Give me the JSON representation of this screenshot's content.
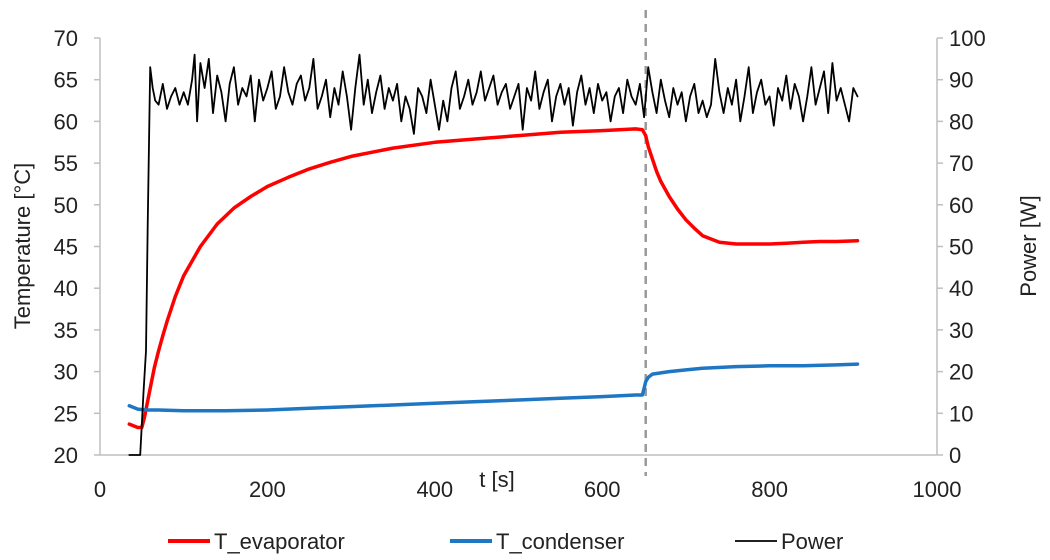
{
  "chart_data": {
    "type": "line",
    "xlabel": "t [s]",
    "ylabel_left": "Temperature [°C]",
    "ylabel_right": "Power [W]",
    "xlim": [
      0,
      1000
    ],
    "ylim_left": [
      20,
      70
    ],
    "ylim_right": [
      0,
      100
    ],
    "xticks": [
      "0",
      "200",
      "400",
      "600",
      "800",
      "1000"
    ],
    "yticks_left": [
      "20",
      "25",
      "30",
      "35",
      "40",
      "45",
      "50",
      "55",
      "60",
      "65",
      "70"
    ],
    "yticks_right": [
      "0",
      "10",
      "20",
      "30",
      "40",
      "50",
      "60",
      "70",
      "80",
      "90",
      "100"
    ],
    "grid": false,
    "legend_position": "bottom",
    "vline_x": 652,
    "vline_color": "#999999",
    "series": [
      {
        "name": "T_evaporator",
        "axis": "left",
        "color": "#ff0000",
        "x": [
          35,
          45,
          50,
          53,
          56,
          60,
          65,
          70,
          75,
          80,
          90,
          100,
          120,
          140,
          160,
          180,
          200,
          225,
          250,
          275,
          300,
          350,
          400,
          450,
          500,
          550,
          600,
          640,
          648,
          652,
          655,
          660,
          665,
          670,
          680,
          690,
          700,
          710,
          720,
          740,
          760,
          780,
          800,
          820,
          840,
          860,
          880,
          905
        ],
        "y": [
          23.7,
          23.3,
          23.3,
          24.5,
          26.0,
          28.0,
          30.5,
          32.5,
          34.3,
          36.0,
          39.0,
          41.5,
          45.0,
          47.7,
          49.6,
          51.0,
          52.2,
          53.3,
          54.3,
          55.1,
          55.8,
          56.8,
          57.5,
          57.9,
          58.3,
          58.7,
          58.9,
          59.1,
          59.0,
          58.3,
          57.0,
          55.5,
          54.0,
          52.8,
          51.0,
          49.5,
          48.2,
          47.2,
          46.3,
          45.5,
          45.3,
          45.3,
          45.3,
          45.4,
          45.5,
          45.6,
          45.6,
          45.7
        ]
      },
      {
        "name": "T_condenser",
        "axis": "left",
        "color": "#1f77c4",
        "x": [
          35,
          45,
          55,
          70,
          100,
          120,
          150,
          200,
          250,
          300,
          350,
          400,
          450,
          500,
          550,
          600,
          640,
          648,
          650,
          652,
          655,
          660,
          680,
          700,
          720,
          760,
          800,
          840,
          880,
          905
        ],
        "y": [
          25.9,
          25.5,
          25.4,
          25.4,
          25.3,
          25.3,
          25.3,
          25.4,
          25.6,
          25.8,
          26.0,
          26.2,
          26.4,
          26.6,
          26.8,
          27.0,
          27.2,
          27.2,
          28.0,
          28.8,
          29.3,
          29.7,
          30.0,
          30.2,
          30.4,
          30.6,
          30.7,
          30.7,
          30.8,
          30.9
        ]
      },
      {
        "name": "Power",
        "axis": "right",
        "color": "#000000",
        "x": [
          35,
          48,
          52,
          55,
          57,
          60,
          63,
          66,
          70,
          75,
          80,
          85,
          90,
          95,
          100,
          105,
          110,
          113,
          116,
          120,
          125,
          130,
          135,
          140,
          145,
          150,
          155,
          160,
          165,
          170,
          175,
          180,
          185,
          190,
          195,
          200,
          205,
          210,
          215,
          220,
          225,
          230,
          235,
          240,
          245,
          250,
          255,
          260,
          265,
          270,
          275,
          280,
          285,
          290,
          295,
          300,
          305,
          310,
          315,
          320,
          325,
          330,
          335,
          340,
          345,
          350,
          355,
          360,
          365,
          370,
          375,
          380,
          385,
          390,
          395,
          400,
          405,
          410,
          415,
          420,
          425,
          430,
          435,
          440,
          445,
          450,
          455,
          460,
          465,
          470,
          475,
          480,
          485,
          490,
          495,
          500,
          505,
          510,
          515,
          520,
          525,
          530,
          535,
          540,
          545,
          550,
          555,
          560,
          565,
          570,
          575,
          580,
          585,
          590,
          595,
          600,
          605,
          610,
          615,
          620,
          625,
          630,
          635,
          640,
          645,
          650,
          655,
          660,
          665,
          670,
          675,
          680,
          685,
          690,
          695,
          700,
          705,
          710,
          715,
          720,
          725,
          730,
          735,
          740,
          745,
          750,
          755,
          760,
          765,
          770,
          775,
          780,
          785,
          790,
          795,
          800,
          805,
          810,
          815,
          820,
          825,
          830,
          835,
          840,
          845,
          850,
          855,
          860,
          865,
          870,
          875,
          880,
          885,
          890,
          895,
          900,
          905
        ],
        "y": [
          0,
          0,
          15,
          25,
          55,
          93,
          88,
          85,
          84,
          89,
          83,
          86,
          88,
          84,
          87,
          84,
          90,
          96,
          80,
          94,
          88,
          95,
          82,
          91,
          87,
          80,
          89,
          93,
          84,
          88,
          86,
          91,
          80,
          90,
          85,
          88,
          92,
          83,
          86,
          93,
          87,
          84,
          89,
          91,
          85,
          88,
          95,
          83,
          86,
          90,
          81,
          88,
          84,
          92,
          86,
          78,
          88,
          96,
          84,
          90,
          82,
          87,
          91,
          83,
          88,
          85,
          89,
          80,
          86,
          83,
          77,
          88,
          86,
          82,
          90,
          84,
          78,
          85,
          80,
          88,
          92,
          83,
          86,
          90,
          84,
          87,
          92,
          85,
          88,
          91,
          84,
          87,
          89,
          83,
          86,
          89,
          78,
          88,
          85,
          92,
          83,
          87,
          90,
          80,
          86,
          89,
          84,
          88,
          79,
          87,
          91,
          84,
          88,
          82,
          89,
          85,
          87,
          80,
          86,
          88,
          82,
          90,
          86,
          84,
          89,
          81,
          93,
          87,
          82,
          90,
          85,
          81,
          88,
          84,
          87,
          80,
          86,
          89,
          82,
          85,
          81,
          84,
          95,
          87,
          82,
          88,
          84,
          90,
          80,
          86,
          93,
          82,
          87,
          90,
          84,
          86,
          79,
          88,
          85,
          91,
          83,
          89,
          86,
          80,
          86,
          93,
          84,
          88,
          92,
          82,
          94,
          85,
          88,
          84,
          80,
          88,
          86
        ]
      }
    ]
  }
}
